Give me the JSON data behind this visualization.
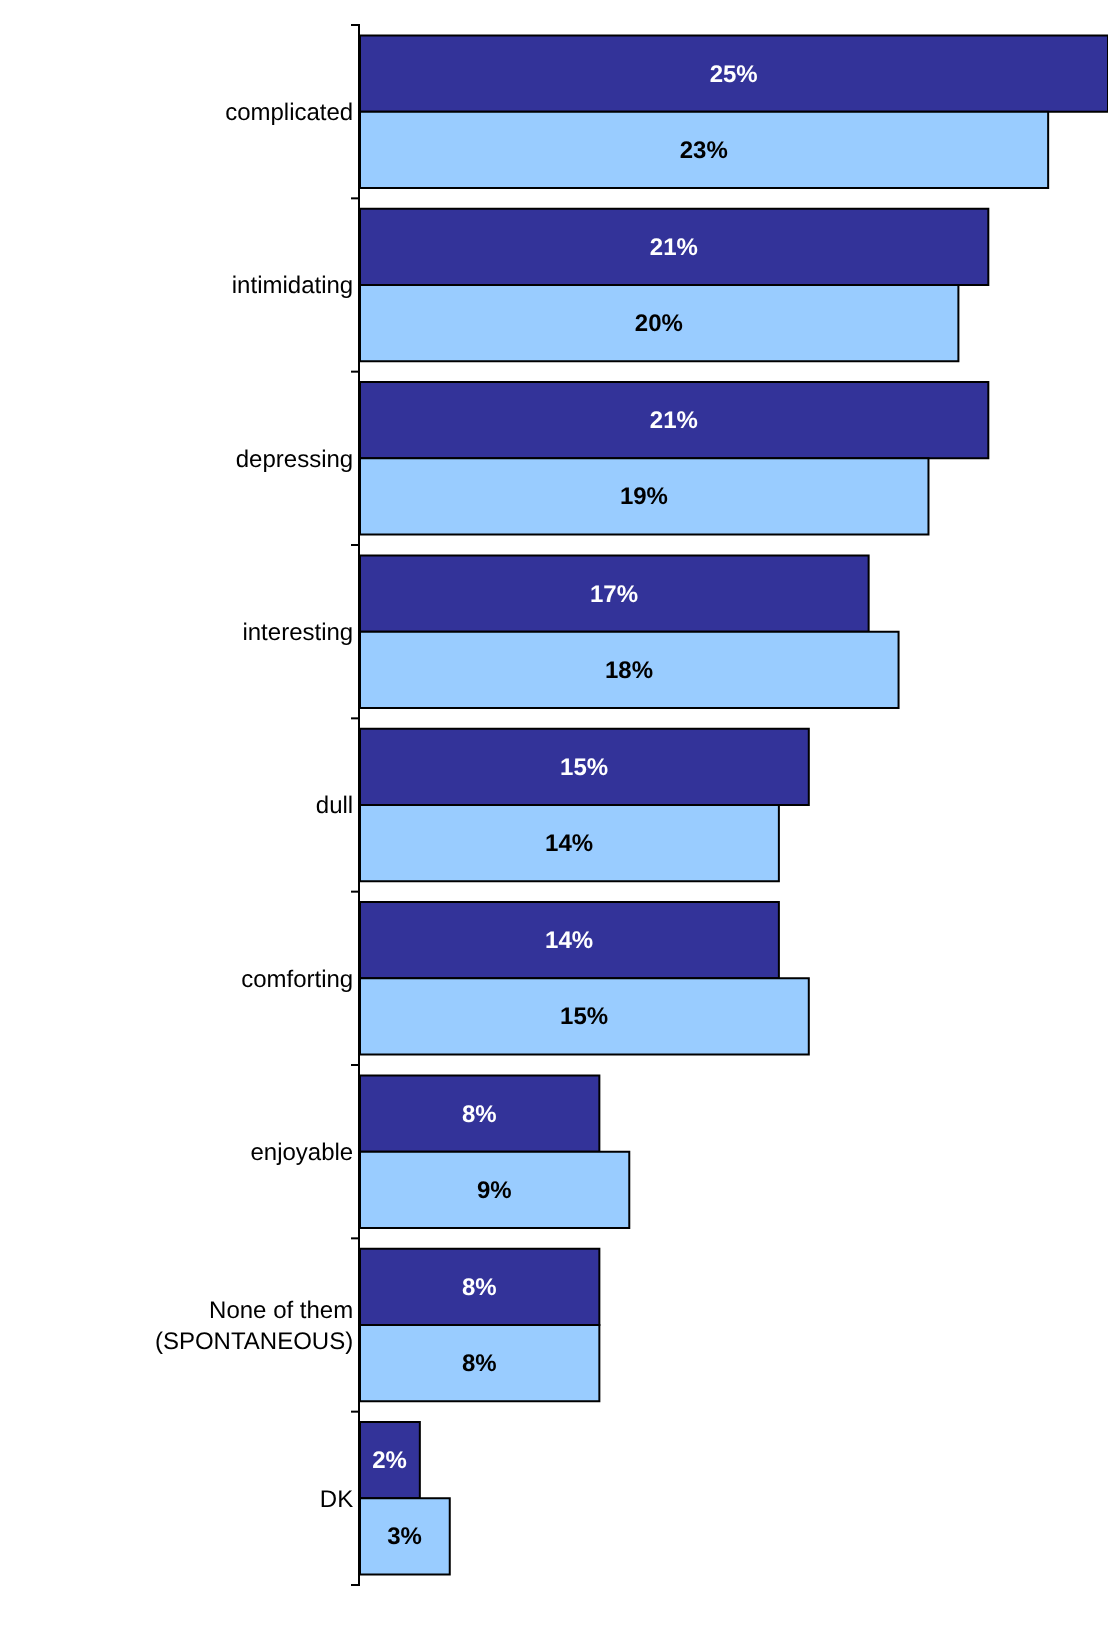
{
  "chart_data": {
    "type": "bar",
    "orientation": "horizontal",
    "categories": [
      "complicated",
      "intimidating",
      "depressing",
      "interesting",
      "dull",
      "comforting",
      "enjoyable",
      "None of them\n(SPONTANEOUS)",
      "DK"
    ],
    "series": [
      {
        "color": "#333399",
        "values": [
          25,
          21,
          21,
          17,
          15,
          14,
          8,
          8,
          2
        ],
        "value_labels": [
          "25%",
          "21%",
          "21%",
          "17%",
          "15%",
          "14%",
          "8%",
          "8%",
          "2%"
        ]
      },
      {
        "color": "#99ccff",
        "values": [
          23,
          20,
          19,
          18,
          14,
          15,
          9,
          8,
          3
        ],
        "value_labels": [
          "23%",
          "20%",
          "19%",
          "18%",
          "14%",
          "15%",
          "9%",
          "8%",
          "3%"
        ]
      }
    ],
    "tick_labels": "y"
  }
}
